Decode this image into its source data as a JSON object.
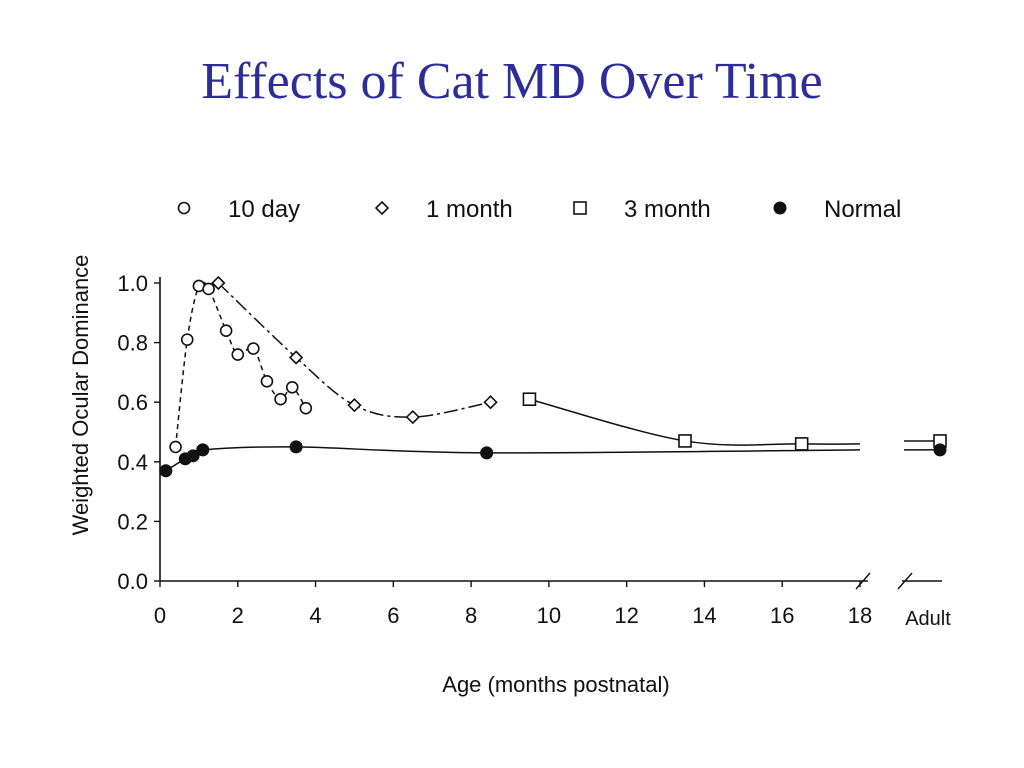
{
  "title": "Effects of Cat MD Over Time",
  "chart_data": {
    "type": "scatter",
    "xlabel": "Age (months postnatal)",
    "ylabel": "Weighted Ocular Dominance",
    "xlim": [
      0,
      18
    ],
    "ylim": [
      0,
      1.0
    ],
    "x_ticks": [
      "0",
      "2",
      "4",
      "6",
      "8",
      "10",
      "12",
      "14",
      "16",
      "18"
    ],
    "y_ticks": [
      "0.0",
      "0.2",
      "0.4",
      "0.6",
      "0.8",
      "1.0"
    ],
    "adult_label": "Adult",
    "grid": false,
    "legend_position": "top",
    "series": [
      {
        "name": "10 day",
        "marker": "circle-open",
        "line": "dashed",
        "points": [
          [
            0.4,
            0.45
          ],
          [
            0.7,
            0.81
          ],
          [
            1.0,
            0.99
          ],
          [
            1.25,
            0.98
          ],
          [
            1.7,
            0.84
          ],
          [
            2.0,
            0.76
          ],
          [
            2.4,
            0.78
          ],
          [
            2.75,
            0.67
          ],
          [
            3.1,
            0.61
          ],
          [
            3.4,
            0.65
          ],
          [
            3.75,
            0.58
          ]
        ]
      },
      {
        "name": "1 month",
        "marker": "diamond-open",
        "line": "dashdot",
        "points": [
          [
            1.5,
            1.0
          ],
          [
            3.5,
            0.75
          ],
          [
            5.0,
            0.59
          ],
          [
            6.5,
            0.55
          ],
          [
            8.5,
            0.6
          ]
        ]
      },
      {
        "name": "3 month",
        "marker": "square-open",
        "line": "solid",
        "points": [
          [
            9.5,
            0.61
          ],
          [
            13.5,
            0.47
          ],
          [
            16.5,
            0.46
          ]
        ],
        "adult_value": 0.47
      },
      {
        "name": "Normal",
        "marker": "circle-filled",
        "line": "solid",
        "points": [
          [
            0.15,
            0.37
          ],
          [
            0.65,
            0.41
          ],
          [
            0.85,
            0.42
          ],
          [
            1.1,
            0.44
          ],
          [
            3.5,
            0.45
          ],
          [
            8.4,
            0.43
          ]
        ],
        "adult_value": 0.44
      }
    ]
  }
}
